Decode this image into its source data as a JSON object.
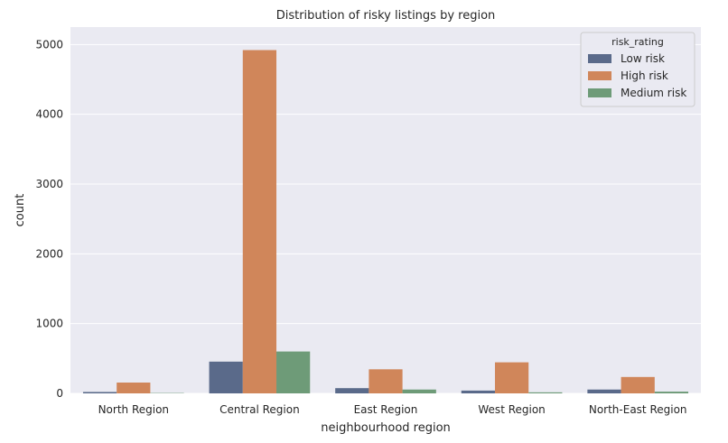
{
  "chart_data": {
    "type": "bar",
    "title": "Distribution of risky listings by region",
    "xlabel": "neighbourhood region",
    "ylabel": "count",
    "categories": [
      "North Region",
      "Central Region",
      "East Region",
      "West Region",
      "North-East Region"
    ],
    "series": [
      {
        "name": "Low risk",
        "color": "#5a6a8a",
        "values": [
          20,
          455,
          75,
          40,
          55
        ]
      },
      {
        "name": "High risk",
        "color": "#d0865a",
        "values": [
          155,
          4920,
          345,
          445,
          235
        ]
      },
      {
        "name": "Medium risk",
        "color": "#6e9b78",
        "values": [
          5,
          600,
          55,
          15,
          25
        ]
      }
    ],
    "ylim": [
      0,
      5250
    ],
    "yticks": [
      0,
      1000,
      2000,
      3000,
      4000,
      5000
    ],
    "grid": true,
    "background_color": "#eaeaf2",
    "legend": {
      "title": "risk_rating",
      "position": "top-right"
    }
  }
}
